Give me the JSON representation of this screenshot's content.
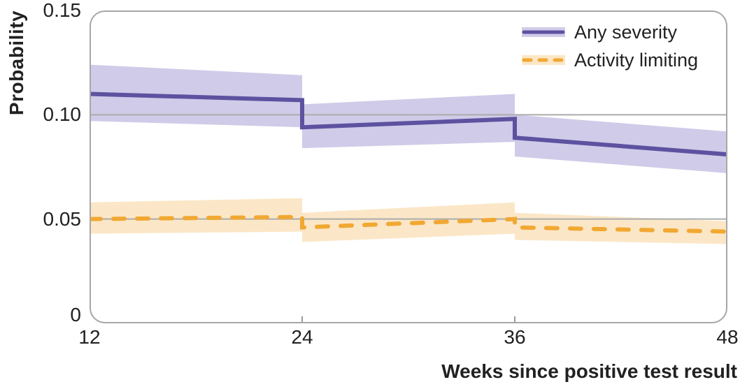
{
  "chart_data": {
    "type": "line",
    "title": "",
    "xlabel": "Weeks since positive test result",
    "ylabel": "Probability",
    "xlim": [
      12,
      48
    ],
    "ylim": [
      0,
      0.15
    ],
    "x_ticks": [
      12,
      24,
      36,
      48
    ],
    "x_tick_labels": [
      "12",
      "24",
      "36",
      "48"
    ],
    "y_ticks": [
      0,
      0.05,
      0.1,
      0.15
    ],
    "y_tick_labels": [
      "0",
      "0.05",
      "0.10",
      "0.15"
    ],
    "gridlines_y": [
      0.05,
      0.1
    ],
    "grid": "horizontal gridlines at 0.05 and 0.10 only",
    "legend_position": "top-right inside plot",
    "note": "Step discontinuities at weeks 24 and 36; shaded ribbons are confidence intervals",
    "series": [
      {
        "name": "Any severity",
        "style": "solid",
        "line_color": "#5d52a0",
        "band_color": "#d0cbe8",
        "segments": [
          {
            "x": [
              12,
              24
            ],
            "est": [
              0.11,
              0.107
            ],
            "lo": [
              0.097,
              0.094
            ],
            "hi": [
              0.124,
              0.119
            ]
          },
          {
            "x": [
              24,
              36
            ],
            "est": [
              0.094,
              0.098
            ],
            "lo": [
              0.084,
              0.087
            ],
            "hi": [
              0.105,
              0.11
            ]
          },
          {
            "x": [
              36,
              48
            ],
            "est": [
              0.089,
              0.081
            ],
            "lo": [
              0.08,
              0.072
            ],
            "hi": [
              0.1,
              0.092
            ]
          }
        ]
      },
      {
        "name": "Activity limiting",
        "style": "dashed",
        "line_color": "#f1a833",
        "band_color": "#fbe7c7",
        "segments": [
          {
            "x": [
              12,
              24
            ],
            "est": [
              0.05,
              0.051
            ],
            "lo": [
              0.043,
              0.044
            ],
            "hi": [
              0.058,
              0.06
            ]
          },
          {
            "x": [
              24,
              36
            ],
            "est": [
              0.046,
              0.05
            ],
            "lo": [
              0.039,
              0.043
            ],
            "hi": [
              0.053,
              0.058
            ]
          },
          {
            "x": [
              36,
              48
            ],
            "est": [
              0.046,
              0.044
            ],
            "lo": [
              0.04,
              0.038
            ],
            "hi": [
              0.053,
              0.049
            ]
          }
        ]
      }
    ],
    "colors": {
      "gridline": "#ababab",
      "plot_border": "#a7a7a7",
      "tick_mark": "#999999",
      "text": "#212121"
    }
  }
}
